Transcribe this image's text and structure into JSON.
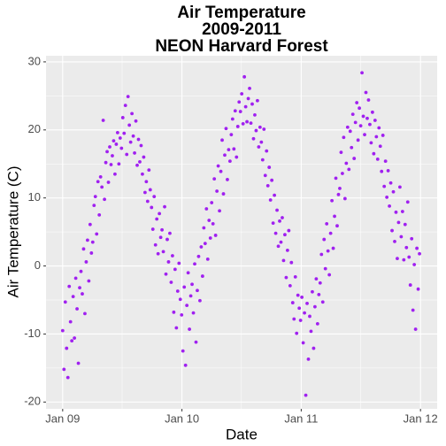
{
  "chart_data": {
    "type": "scatter",
    "title": [
      "Air Temperature",
      "2009-2011",
      "NEON Harvard Forest"
    ],
    "x_label": "Date",
    "y_label": "Air Temperature (C)",
    "color": "#a020f0",
    "grid": true,
    "xlim": [
      -51,
      1146
    ],
    "ylim": [
      -21.0,
      30.9
    ],
    "xticks": [
      {
        "value": 0,
        "label": "Jan 09"
      },
      {
        "value": 365,
        "label": "Jan 10"
      },
      {
        "value": 730,
        "label": "Jan 11"
      },
      {
        "value": 1095,
        "label": "Jan 12"
      }
    ],
    "minor_xticks": [
      182,
      547,
      912
    ],
    "yticks": [
      -20,
      -10,
      0,
      10,
      20,
      30
    ],
    "minor_yticks": [
      -15,
      -5,
      5,
      15,
      25
    ],
    "x": [
      0,
      4,
      8,
      12,
      16,
      20,
      24,
      28,
      32,
      36,
      40,
      44,
      48,
      52,
      56,
      60,
      64,
      68,
      72,
      76,
      80,
      84,
      88,
      92,
      96,
      100,
      104,
      108,
      112,
      116,
      120,
      124,
      128,
      132,
      136,
      140,
      144,
      148,
      152,
      156,
      160,
      164,
      168,
      172,
      176,
      180,
      184,
      188,
      192,
      196,
      200,
      204,
      208,
      212,
      216,
      220,
      224,
      228,
      232,
      236,
      240,
      244,
      248,
      252,
      256,
      260,
      264,
      268,
      272,
      276,
      280,
      284,
      288,
      292,
      296,
      300,
      304,
      308,
      312,
      316,
      320,
      324,
      328,
      332,
      336,
      340,
      344,
      348,
      352,
      356,
      360,
      364,
      368,
      372,
      376,
      380,
      384,
      388,
      392,
      396,
      400,
      404,
      408,
      412,
      416,
      420,
      424,
      428,
      432,
      436,
      440,
      444,
      448,
      452,
      456,
      460,
      464,
      468,
      472,
      476,
      480,
      484,
      488,
      492,
      496,
      500,
      504,
      508,
      512,
      516,
      520,
      524,
      528,
      532,
      536,
      540,
      544,
      548,
      552,
      556,
      560,
      564,
      568,
      572,
      576,
      580,
      584,
      588,
      592,
      596,
      600,
      604,
      608,
      612,
      616,
      620,
      624,
      628,
      632,
      636,
      640,
      644,
      648,
      652,
      656,
      660,
      664,
      668,
      672,
      676,
      680,
      684,
      688,
      692,
      696,
      700,
      704,
      708,
      712,
      716,
      720,
      724,
      728,
      732,
      736,
      740,
      744,
      748,
      752,
      756,
      760,
      764,
      768,
      772,
      776,
      780,
      784,
      788,
      792,
      796,
      800,
      804,
      808,
      812,
      816,
      820,
      824,
      828,
      832,
      836,
      840,
      844,
      848,
      852,
      856,
      860,
      864,
      868,
      872,
      876,
      880,
      884,
      888,
      892,
      896,
      900,
      904,
      908,
      912,
      916,
      920,
      924,
      928,
      932,
      936,
      940,
      944,
      948,
      952,
      956,
      960,
      964,
      968,
      972,
      976,
      980,
      984,
      988,
      992,
      996,
      1000,
      1004,
      1008,
      1012,
      1016,
      1020,
      1024,
      1028,
      1032,
      1036,
      1040,
      1044,
      1048,
      1052,
      1056,
      1060,
      1064,
      1068,
      1072,
      1076,
      1080,
      1084,
      1088,
      1092
    ],
    "values": [
      -9.5,
      -15.2,
      -5.3,
      -12.1,
      -16.4,
      -3.0,
      -8.2,
      -11.0,
      -4.5,
      -10.6,
      -1.8,
      -6.3,
      -14.3,
      -3.2,
      -0.8,
      -4.1,
      2.5,
      -7.0,
      0.6,
      3.8,
      -2.2,
      6.1,
      1.9,
      3.5,
      8.9,
      10.2,
      4.7,
      12.4,
      7.5,
      13.1,
      11.6,
      21.4,
      9.8,
      15.2,
      16.8,
      12.3,
      17.5,
      14.9,
      16.2,
      18.4,
      13.5,
      17.9,
      19.6,
      15.0,
      18.8,
      17.3,
      21.8,
      19.5,
      23.6,
      16.4,
      24.9,
      20.7,
      18.2,
      22.4,
      19.1,
      16.6,
      21.3,
      14.8,
      18.6,
      15.3,
      17.7,
      13.5,
      16.0,
      10.8,
      12.4,
      9.5,
      14.1,
      11.2,
      8.6,
      5.4,
      10.2,
      3.1,
      6.9,
      1.8,
      7.7,
      4.2,
      5.3,
      2.1,
      8.7,
      -1.2,
      3.9,
      0.6,
      4.8,
      -2.4,
      1.5,
      -6.8,
      -0.5,
      -9.1,
      -3.7,
      0.4,
      -4.9,
      -7.2,
      -12.5,
      -3.1,
      -14.6,
      -5.8,
      -1.0,
      -9.3,
      -4.4,
      -2.7,
      -6.9,
      0.3,
      -11.2,
      -3.6,
      1.4,
      -5.1,
      2.8,
      -1.5,
      5.6,
      3.3,
      8.4,
      1.0,
      6.7,
      4.1,
      9.3,
      6.2,
      12.8,
      4.5,
      11.0,
      14.7,
      8.1,
      13.9,
      18.5,
      10.6,
      16.3,
      20.2,
      12.7,
      17.1,
      15.4,
      19.3,
      21.6,
      17.2,
      22.8,
      16.0,
      20.5,
      24.1,
      22.7,
      25.3,
      20.9,
      27.8,
      23.4,
      21.2,
      24.6,
      26.1,
      21.0,
      23.8,
      18.7,
      22.2,
      19.9,
      24.3,
      17.5,
      20.4,
      18.2,
      15.6,
      20.1,
      13.3,
      16.9,
      11.8,
      14.5,
      9.7,
      12.6,
      6.3,
      10.4,
      4.8,
      8.2,
      2.9,
      6.6,
      3.5,
      7.1,
      0.8,
      4.6,
      -1.7,
      2.3,
      5.2,
      -2.9,
      0.5,
      -5.4,
      -7.8,
      -1.6,
      -9.9,
      -4.3,
      -6.2,
      -8.0,
      -4.6,
      -11.3,
      -6.9,
      -19.0,
      -5.5,
      -13.7,
      -7.4,
      -9.6,
      -3.8,
      -12.1,
      -6.0,
      -1.9,
      -8.5,
      -4.2,
      -2.5,
      1.7,
      -5.3,
      3.9,
      -0.4,
      6.2,
      2.2,
      -1.3,
      4.8,
      9.6,
      2.6,
      7.3,
      12.9,
      5.9,
      10.5,
      11.4,
      16.7,
      13.6,
      18.9,
      9.9,
      15.1,
      20.4,
      14.2,
      19.8,
      17.4,
      22.3,
      15.8,
      21.1,
      24.0,
      18.5,
      23.2,
      20.6,
      28.4,
      22.0,
      19.3,
      25.5,
      21.7,
      24.4,
      20.8,
      18.1,
      22.6,
      16.5,
      21.4,
      19.0,
      15.7,
      20.3,
      17.6,
      13.9,
      19.2,
      11.7,
      15.4,
      10.1,
      14.0,
      8.8,
      12.2,
      5.2,
      10.9,
      3.6,
      7.9,
      1.1,
      6.4,
      11.6,
      4.3,
      8.0,
      0.9,
      6.1,
      2.7,
      9.4,
      1.3,
      -2.8,
      4.0,
      -6.5,
      0.2,
      -9.3,
      2.6,
      -3.4,
      1.8
    ]
  }
}
